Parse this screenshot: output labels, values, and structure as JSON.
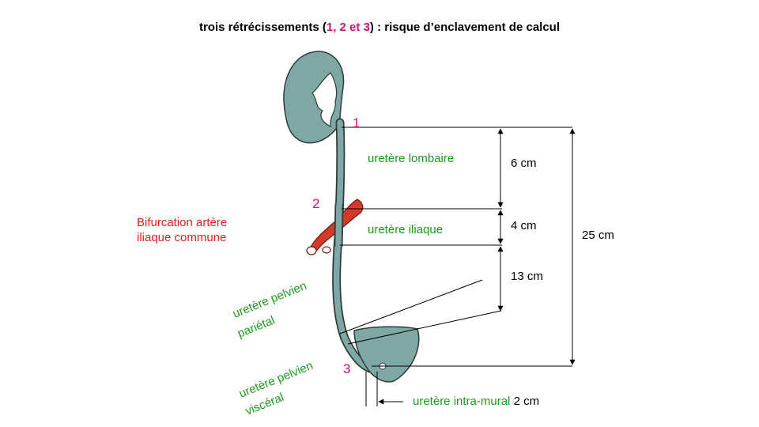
{
  "title": {
    "part1": "trois rétrécissements  (",
    "highlight": "1, 2 et 3",
    "part2": ") : risque d’enclavement de calcul"
  },
  "markers": [
    "1",
    "2",
    "3"
  ],
  "segments": {
    "lombaire": "uretère lombaire",
    "iliaque": "uretère iliaque",
    "pelvien_parietal_l1": "uretère pelvien",
    "pelvien_parietal_l2": "pariétal",
    "pelvien_visceral_l1": "uretère pelvien",
    "pelvien_visceral_l2": "viscéral",
    "intra_mural": "uretère intra-mural",
    "intra_mural_len": "2 cm"
  },
  "artery": {
    "line1": "Bifurcation artère",
    "line2": "iliaque commune"
  },
  "measures": {
    "lombaire": "6 cm",
    "iliaque": "4 cm",
    "pelvien": "13 cm",
    "total": "25 cm"
  },
  "colors": {
    "marker": "#cc1177",
    "green_label": "#1e9a1e",
    "red_label": "#e02020",
    "organ_fill": "#7fa7a3",
    "artery_fill": "#d23a2a"
  }
}
